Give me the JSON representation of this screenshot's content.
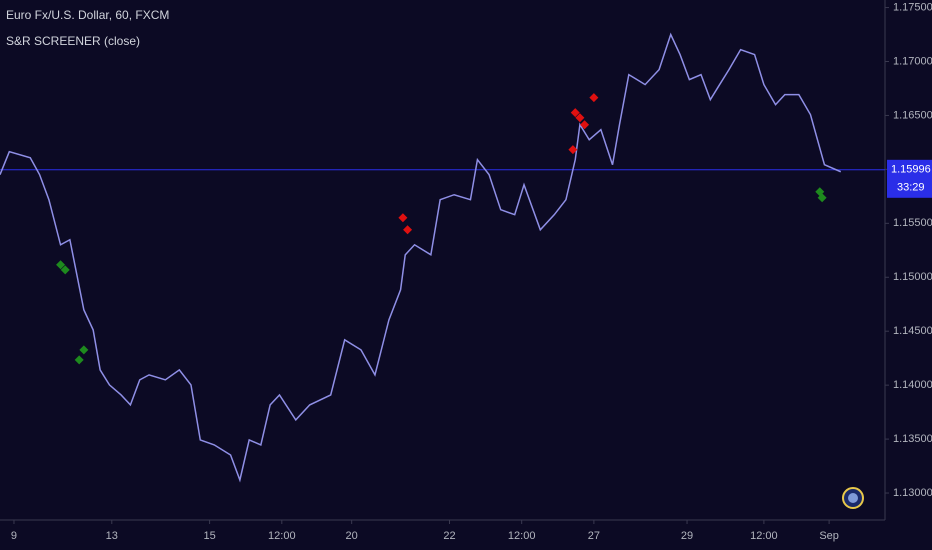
{
  "chart_data": {
    "type": "line",
    "title": "Euro Fx/U.S. Dollar, 60, FXCM",
    "subtitle": "S&R SCREENER (close)",
    "xlim": [
      0,
      380
    ],
    "ylim": [
      1.1275,
      1.1757
    ],
    "xticks": [
      {
        "value": 6,
        "label": "9"
      },
      {
        "value": 48,
        "label": "13"
      },
      {
        "value": 90,
        "label": "15"
      },
      {
        "value": 121,
        "label": "12:00"
      },
      {
        "value": 151,
        "label": "20"
      },
      {
        "value": 193,
        "label": "22"
      },
      {
        "value": 224,
        "label": "12:00"
      },
      {
        "value": 255,
        "label": "27"
      },
      {
        "value": 295,
        "label": "29"
      },
      {
        "value": 328,
        "label": "12:00"
      },
      {
        "value": 356,
        "label": "Sep"
      }
    ],
    "yticks": [
      {
        "value": 1.13,
        "label": "1.13000"
      },
      {
        "value": 1.135,
        "label": "1.13500"
      },
      {
        "value": 1.14,
        "label": "1.14000"
      },
      {
        "value": 1.145,
        "label": "1.14500"
      },
      {
        "value": 1.15,
        "label": "1.15000"
      },
      {
        "value": 1.155,
        "label": "1.15500"
      },
      {
        "value": 1.16,
        "label": "1.16000"
      },
      {
        "value": 1.165,
        "label": "1.16500"
      },
      {
        "value": 1.17,
        "label": "1.17000"
      },
      {
        "value": 1.175,
        "label": "1.17500"
      }
    ],
    "last_price": 1.15996,
    "last_price_color": "#2a2ee8",
    "countdown": "33:29",
    "series": [
      {
        "type": "line",
        "color": "#8f8fe6",
        "x": [
          0,
          4,
          13,
          17,
          21,
          26,
          30,
          33,
          36,
          40,
          43,
          47,
          52,
          56,
          60,
          64,
          71,
          77,
          82,
          86,
          92,
          99,
          103,
          107,
          112,
          116,
          120,
          127,
          133,
          142,
          148,
          155,
          161,
          167,
          172,
          174,
          178,
          185,
          189,
          195,
          202,
          205,
          210,
          215,
          221,
          225,
          232,
          238,
          243,
          247,
          249,
          253,
          258,
          263,
          266,
          270,
          277,
          283,
          288,
          292,
          296,
          301,
          305,
          309,
          313,
          318,
          324,
          328,
          333,
          337,
          343,
          348,
          351,
          354,
          361
        ],
        "values": [
          1.15951,
          1.16164,
          1.16108,
          1.15951,
          1.15719,
          1.15301,
          1.15348,
          1.15023,
          1.14698,
          1.14512,
          1.14141,
          1.14002,
          1.13909,
          1.13817,
          1.14049,
          1.14095,
          1.14049,
          1.14141,
          1.14002,
          1.13492,
          1.13446,
          1.13353,
          1.13121,
          1.13492,
          1.13446,
          1.13817,
          1.13909,
          1.13678,
          1.13817,
          1.13909,
          1.1442,
          1.14327,
          1.14095,
          1.14605,
          1.14884,
          1.15208,
          1.15301,
          1.15208,
          1.15719,
          1.15765,
          1.15719,
          1.1609,
          1.15951,
          1.15626,
          1.1558,
          1.15858,
          1.1544,
          1.1558,
          1.15719,
          1.1609,
          1.16415,
          1.16275,
          1.16368,
          1.16043,
          1.16415,
          1.16878,
          1.16786,
          1.16925,
          1.1725,
          1.17064,
          1.16832,
          1.16878,
          1.16646,
          1.16786,
          1.16925,
          1.1711,
          1.17064,
          1.16786,
          1.166,
          1.16693,
          1.16693,
          1.16507,
          1.16275,
          1.16043,
          1.15978
        ]
      },
      {
        "type": "scatter",
        "marker": "diamond",
        "color": "#1e8a1e",
        "x": [
          26,
          28,
          34,
          36,
          352,
          353
        ],
        "values": [
          1.15116,
          1.15069,
          1.14234,
          1.14327,
          1.15793,
          1.15737
        ]
      },
      {
        "type": "scatter",
        "marker": "diamond",
        "color": "#e01010",
        "x": [
          173,
          175,
          246,
          247,
          249,
          251,
          255
        ],
        "values": [
          1.15552,
          1.1544,
          1.16183,
          1.16526,
          1.16479,
          1.16414,
          1.16665
        ]
      }
    ]
  }
}
